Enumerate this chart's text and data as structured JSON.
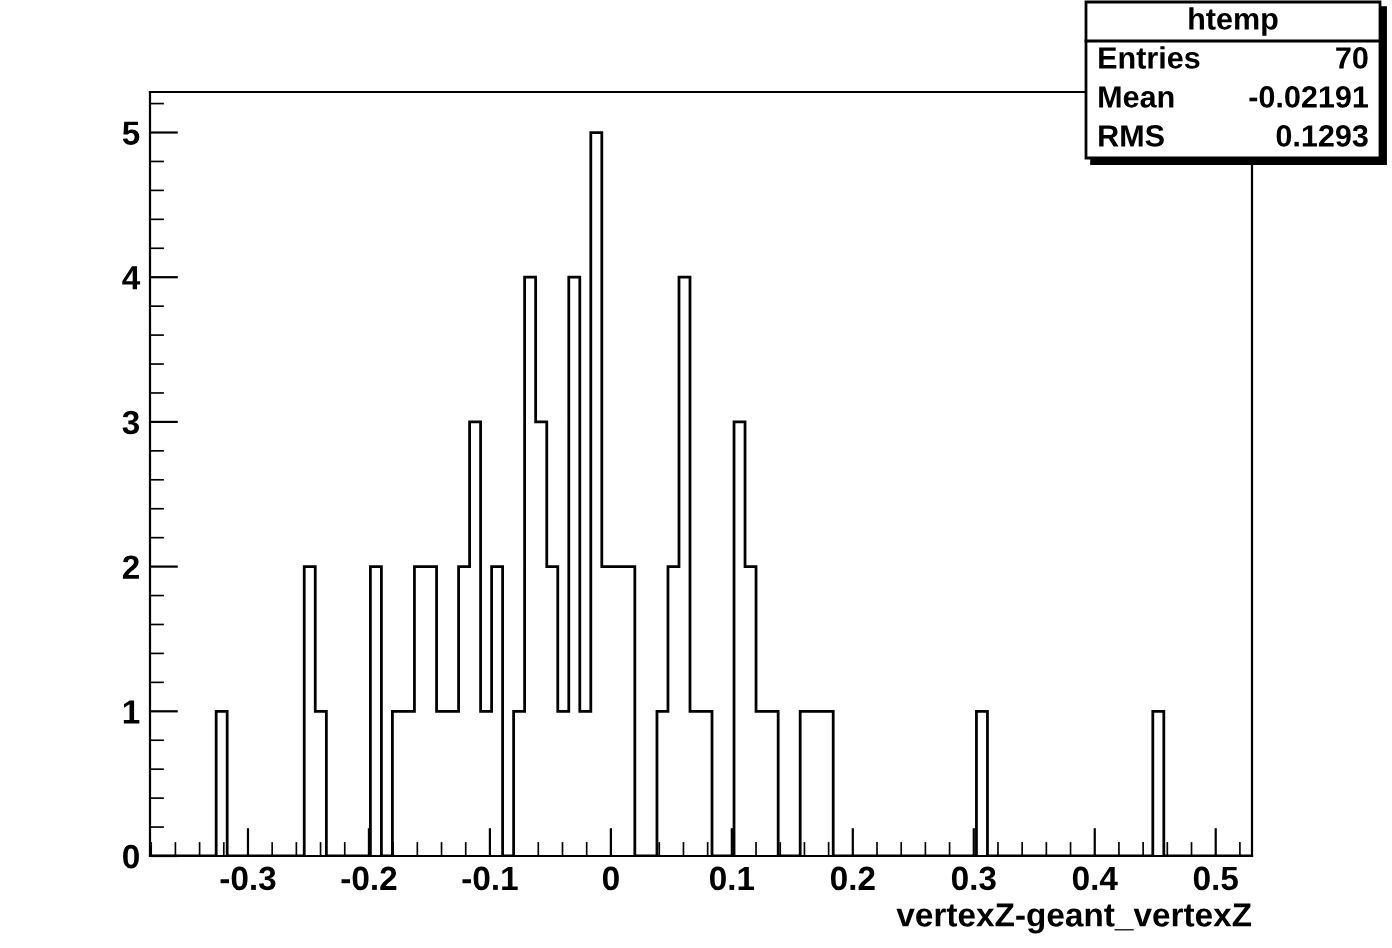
{
  "chart_data": {
    "type": "histogram",
    "bins": [
      -0.381,
      -0.3719,
      -0.3628,
      -0.3537,
      -0.3446,
      -0.3355,
      -0.3263,
      -0.3172,
      -0.3081,
      -0.299,
      -0.2899,
      -0.2808,
      -0.2717,
      -0.2626,
      -0.2535,
      -0.2444,
      -0.2352,
      -0.2261,
      -0.217,
      -0.2079,
      -0.1988,
      -0.1897,
      -0.1806,
      -0.1715,
      -0.1624,
      -0.1533,
      -0.1441,
      -0.135,
      -0.1259,
      -0.1168,
      -0.1077,
      -0.0986,
      -0.0895,
      -0.0804,
      -0.0713,
      -0.0622,
      -0.053,
      -0.0439,
      -0.0348,
      -0.0257,
      -0.0166,
      -0.0075,
      0.0016,
      0.0107,
      0.0198,
      0.029,
      0.0381,
      0.0472,
      0.0563,
      0.0654,
      0.0745,
      0.0836,
      0.0927,
      0.1018,
      0.1109,
      0.12,
      0.1292,
      0.1383,
      0.1474,
      0.1565,
      0.1656,
      0.1747,
      0.1838,
      0.1929,
      0.202,
      0.2111,
      0.2203,
      0.2294,
      0.2385,
      0.2476,
      0.2567,
      0.2658,
      0.2749,
      0.284,
      0.2931,
      0.3022,
      0.3113,
      0.3204,
      0.3296,
      0.3387,
      0.3478,
      0.3569,
      0.366,
      0.3751,
      0.3842,
      0.3933,
      0.4024,
      0.4115,
      0.4206,
      0.4297,
      0.4389,
      0.448,
      0.4571,
      0.4662,
      0.4753,
      0.4844,
      0.4935,
      0.5026,
      0.5117,
      0.5208,
      0.53
    ],
    "values": [
      0,
      0,
      0,
      0,
      0,
      0,
      1,
      0,
      0,
      0,
      0,
      0,
      0,
      0,
      2,
      1,
      0,
      0,
      0,
      0,
      2,
      0,
      1,
      1,
      2,
      2,
      1,
      1,
      2,
      3,
      1,
      2,
      0,
      1,
      4,
      3,
      2,
      1,
      4,
      1,
      5,
      2,
      2,
      2,
      0,
      0,
      1,
      2,
      4,
      1,
      1,
      0,
      0,
      3,
      2,
      1,
      1,
      0,
      0,
      1,
      1,
      1,
      0,
      0,
      0,
      0,
      0,
      0,
      0,
      0,
      0,
      0,
      0,
      0,
      0,
      1,
      0,
      0,
      0,
      0,
      0,
      0,
      0,
      0,
      0,
      0,
      0,
      0,
      0,
      0,
      0,
      1,
      0,
      0,
      0,
      0,
      0,
      0,
      0,
      0
    ],
    "color": "#000000",
    "xlabel": "vertexZ-geant_vertexZ",
    "xlim": [
      -0.381,
      0.53
    ],
    "ylim": [
      0,
      5.28
    ],
    "xticks": [
      -0.3,
      -0.2,
      -0.1,
      0,
      0.1,
      0.2,
      0.3,
      0.4,
      0.5
    ],
    "yticks": [
      0,
      1,
      2,
      3,
      4,
      5
    ],
    "annotations": [
      "htemp",
      "Entries",
      "70",
      "Mean",
      "-0.02191",
      "RMS",
      "0.1293"
    ],
    "grid": false,
    "legend": false
  }
}
